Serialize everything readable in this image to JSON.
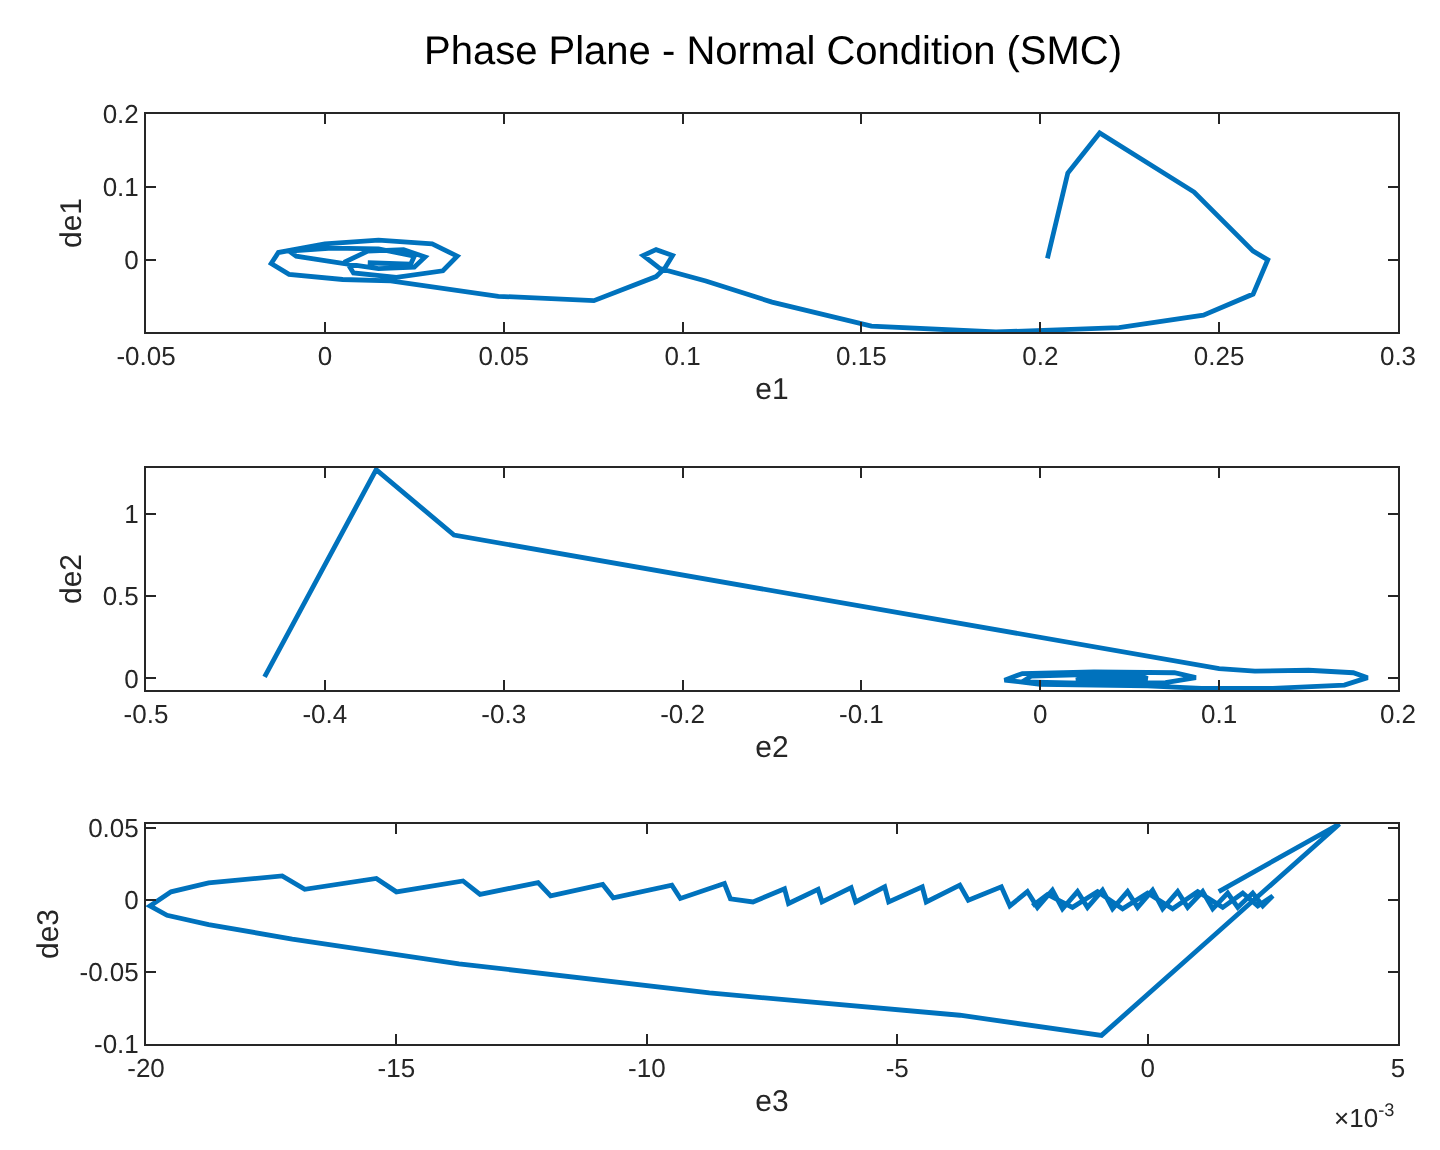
{
  "chart_data": [
    {
      "type": "line",
      "title": "Phase Plane - Normal Condition (SMC)",
      "xlabel": "e1",
      "ylabel": "de1",
      "xlim": [
        -0.05,
        0.3
      ],
      "ylim": [
        -0.099,
        0.2
      ],
      "xticks": [
        -0.05,
        0,
        0.05,
        0.1,
        0.15,
        0.2,
        0.25,
        0.3
      ],
      "yticks": [
        0,
        0.1,
        0.2
      ],
      "grid": false,
      "line_style": "solid",
      "marker": "none",
      "series": [
        {
          "color": "#0072bd",
          "x": [
            0.202,
            0.2077,
            0.2166,
            0.243,
            0.2595,
            0.2636,
            0.2595,
            0.2456,
            0.222,
            0.1876,
            0.1528,
            0.125,
            0.1065,
            0.0937,
            0.089,
            0.0926,
            0.0972,
            0.095,
            0.0926,
            0.0752,
            0.0485,
            0.0184,
            0.005,
            -0.01,
            -0.015,
            -0.013,
            0.0,
            0.015,
            0.03,
            0.037,
            0.033,
            0.02,
            0.008,
            0.006,
            0.012,
            0.022,
            0.028,
            0.025,
            0.015,
            0.005,
            -0.008,
            -0.01,
            0.002,
            0.015,
            0.025,
            0.024,
            0.012
          ],
          "values": [
            0.002,
            0.119,
            0.174,
            0.093,
            0.012,
            0.0,
            -0.047,
            -0.076,
            -0.093,
            -0.099,
            -0.091,
            -0.058,
            -0.029,
            -0.012,
            0.006,
            0.014,
            0.006,
            -0.012,
            -0.023,
            -0.056,
            -0.05,
            -0.029,
            -0.027,
            -0.02,
            -0.005,
            0.01,
            0.022,
            0.027,
            0.022,
            0.005,
            -0.015,
            -0.024,
            -0.018,
            -0.002,
            0.012,
            0.014,
            0.004,
            -0.01,
            -0.012,
            -0.005,
            0.005,
            0.012,
            0.016,
            0.015,
            0.005,
            -0.006,
            -0.004
          ]
        }
      ]
    },
    {
      "type": "line",
      "xlabel": "e2",
      "ylabel": "de2",
      "xlim": [
        -0.5,
        0.2
      ],
      "ylim": [
        -0.07,
        1.28
      ],
      "xticks": [
        -0.5,
        -0.4,
        -0.3,
        -0.2,
        -0.1,
        0,
        0.1,
        0.2
      ],
      "yticks": [
        0,
        0.5,
        1
      ],
      "grid": false,
      "line_style": "solid",
      "marker": "none",
      "series": [
        {
          "color": "#0072bd",
          "x": [
            -0.4337,
            -0.3713,
            -0.3278,
            0.1,
            0.12,
            0.15,
            0.175,
            0.183,
            0.17,
            0.13,
            0.09,
            0.06,
            0.0,
            -0.02,
            -0.01,
            0.03,
            0.075,
            0.087,
            0.07,
            0.03,
            -0.01,
            -0.005,
            0.03,
            0.055,
            0.06,
            0.04,
            0.02,
            0.025,
            0.05
          ],
          "values": [
            0.01,
            1.27,
            0.872,
            0.06,
            0.045,
            0.05,
            0.035,
            0.005,
            -0.04,
            -0.06,
            -0.06,
            -0.045,
            -0.035,
            -0.01,
            0.03,
            0.04,
            0.035,
            0.005,
            -0.025,
            -0.03,
            -0.02,
            0.015,
            0.025,
            0.02,
            0.0,
            -0.015,
            -0.01,
            0.005,
            0.01
          ]
        }
      ]
    },
    {
      "type": "line",
      "xlabel": "e3",
      "ylabel": "de3",
      "xlim": [
        -20,
        5
      ],
      "ylim": [
        -0.1,
        0.053
      ],
      "xticks": [
        -20,
        -15,
        -10,
        -5,
        0,
        5
      ],
      "yticks": [
        -0.1,
        -0.05,
        0,
        0.05
      ],
      "grid": false,
      "line_style": "solid",
      "marker": "none",
      "annotations": [
        "×10$^{-3}$"
      ],
      "series": [
        {
          "color": "#0072bd",
          "x": [
            1.42,
            3.83,
            -0.92,
            -3.75,
            -8.75,
            -13.75,
            -17.08,
            -18.75,
            -19.58,
            -19.92,
            -19.5,
            -18.75,
            -17.28,
            -16.83,
            -15.4,
            -15.0,
            -13.67,
            -13.33,
            -12.17,
            -11.92,
            -10.88,
            -10.67,
            -9.5,
            -9.33,
            -8.45,
            -8.33,
            -7.88,
            -7.25,
            -7.17,
            -6.58,
            -6.5,
            -5.92,
            -5.83,
            -5.25,
            -5.17,
            -4.5,
            -4.42,
            -3.75,
            -3.58,
            -2.92,
            -2.75,
            -2.4,
            -2.2,
            -1.9,
            -1.7,
            -1.4,
            -1.2,
            -0.9,
            -0.7,
            -0.4,
            -0.2,
            0.1,
            0.3,
            0.6,
            0.8,
            1.1,
            1.3,
            1.6,
            1.8,
            2.1,
            2.3,
            2.5,
            2.2,
            1.9,
            1.5,
            1.0,
            0.5,
            0.0,
            -0.5,
            -1.0,
            -1.5,
            -2.0,
            -2.3
          ],
          "values": [
            0.006,
            0.053,
            -0.094,
            -0.08,
            -0.0645,
            -0.0442,
            -0.027,
            -0.017,
            -0.0105,
            -0.004,
            0.0058,
            0.012,
            0.0169,
            0.0076,
            0.0151,
            0.0058,
            0.0134,
            0.0041,
            0.0122,
            0.003,
            0.011,
            0.0017,
            0.0105,
            0.0012,
            0.0116,
            0.001,
            -0.0012,
            0.008,
            -0.0023,
            0.0076,
            -0.0012,
            0.0087,
            -0.0012,
            0.0093,
            -0.0012,
            0.0093,
            -0.0012,
            0.0105,
            0.0,
            0.0093,
            -0.004,
            0.006,
            -0.005,
            0.007,
            -0.006,
            0.006,
            -0.005,
            0.007,
            -0.006,
            0.006,
            -0.005,
            0.007,
            -0.006,
            0.006,
            -0.005,
            0.006,
            -0.006,
            0.005,
            -0.005,
            0.005,
            -0.004,
            0.003,
            -0.004,
            0.005,
            -0.005,
            0.006,
            -0.006,
            0.005,
            -0.006,
            0.006,
            -0.005,
            0.004,
            -0.004
          ]
        }
      ]
    }
  ]
}
